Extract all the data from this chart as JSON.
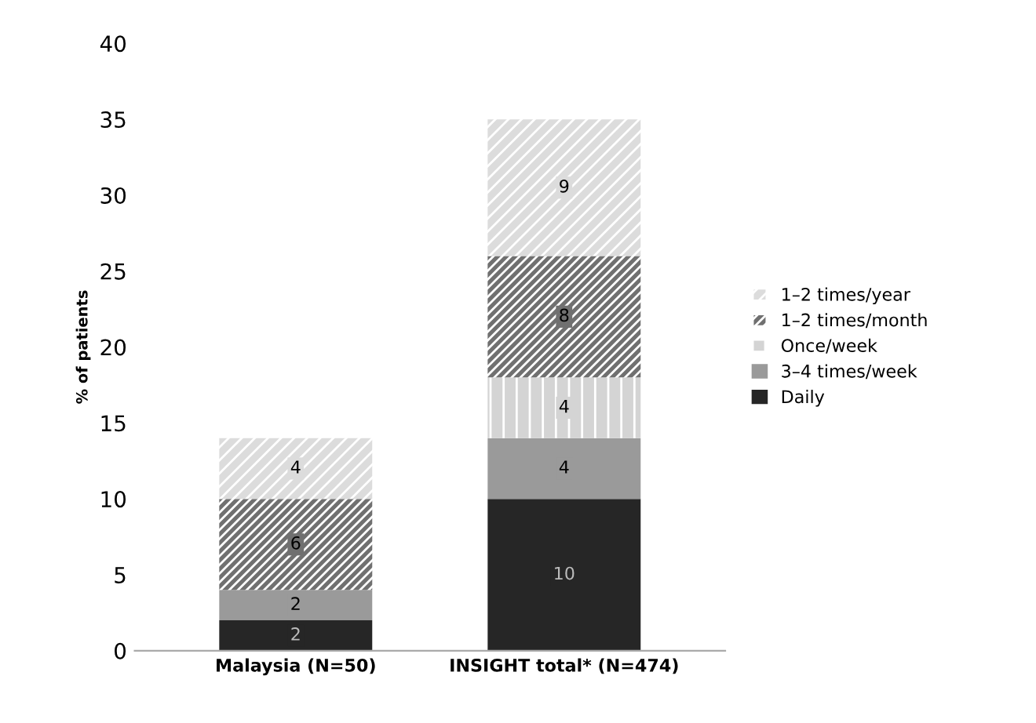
{
  "chart_data": {
    "type": "bar",
    "stacked": true,
    "ylabel": "% of patients",
    "categories": [
      "Malaysia (N=50)",
      "INSIGHT total* (N=474)"
    ],
    "series": [
      {
        "name": "Daily",
        "color": "#262626",
        "values": [
          2,
          10
        ],
        "value_labels": [
          "2",
          "10"
        ]
      },
      {
        "name": "3–4 times/week",
        "color": "#9a9a9a",
        "values": [
          2,
          4
        ],
        "value_labels": [
          "2",
          "4"
        ]
      },
      {
        "name": "Once/week",
        "color": "#d4d4d4",
        "values": [
          0,
          4
        ],
        "value_labels": [
          null,
          "4"
        ]
      },
      {
        "name": "1–2 times/month",
        "color": "#707070",
        "values": [
          6,
          8
        ],
        "value_labels": [
          "6",
          "8"
        ]
      },
      {
        "name": "1–2 times/year",
        "color": "#dcdcdc",
        "values": [
          4,
          9
        ],
        "value_labels": [
          "4",
          "9"
        ]
      }
    ],
    "ylim": [
      0,
      40
    ],
    "yticks": [
      0,
      5,
      10,
      15,
      20,
      25,
      30,
      35,
      40
    ],
    "grid": false,
    "legend": "right"
  }
}
